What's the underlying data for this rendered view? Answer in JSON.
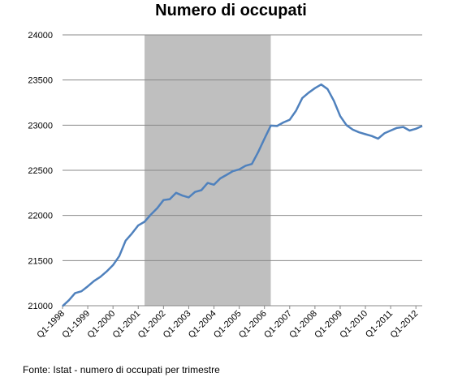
{
  "chart_data": {
    "type": "line",
    "title": "Numero di occupati",
    "source": "Fonte: Istat - numero di occupati per trimestre",
    "xlabel": "",
    "ylabel": "",
    "ylim": [
      21000,
      24000
    ],
    "yticks": [
      "21000",
      "21500",
      "22000",
      "22500",
      "23000",
      "23500",
      "24000"
    ],
    "xtick_labels": [
      "Q1-1998",
      "Q1-1999",
      "Q1-2000",
      "Q1-2001",
      "Q1-2002",
      "Q1-2003",
      "Q1-2004",
      "Q1-2005",
      "Q1-2006",
      "Q1-2007",
      "Q1-2008",
      "Q1-2009",
      "Q1-2010",
      "Q1-2011",
      "Q1-2012"
    ],
    "grid": true,
    "legend": "none",
    "line_color": "#4F81BD",
    "shade_color": "#BFBFBF",
    "shaded_period": [
      "Q2-2001",
      "Q2-2006"
    ],
    "series": [
      {
        "x": [
          "Q1-1998",
          "Q2-1998",
          "Q3-1998",
          "Q4-1998",
          "Q1-1999",
          "Q2-1999",
          "Q3-1999",
          "Q4-1999",
          "Q1-2000",
          "Q2-2000",
          "Q3-2000",
          "Q4-2000",
          "Q1-2001",
          "Q2-2001",
          "Q3-2001",
          "Q4-2001",
          "Q1-2002",
          "Q2-2002",
          "Q3-2002",
          "Q4-2002",
          "Q1-2003",
          "Q2-2003",
          "Q3-2003",
          "Q4-2003",
          "Q1-2004",
          "Q2-2004",
          "Q3-2004",
          "Q4-2004",
          "Q1-2005",
          "Q2-2005",
          "Q3-2005",
          "Q4-2005",
          "Q1-2006",
          "Q2-2006",
          "Q3-2006",
          "Q4-2006",
          "Q1-2007",
          "Q2-2007",
          "Q3-2007",
          "Q4-2007",
          "Q1-2008",
          "Q2-2008",
          "Q3-2008",
          "Q4-2008",
          "Q1-2009",
          "Q2-2009",
          "Q3-2009",
          "Q4-2009",
          "Q1-2010",
          "Q2-2010",
          "Q3-2010",
          "Q4-2010",
          "Q1-2011",
          "Q2-2011",
          "Q3-2011",
          "Q4-2011",
          "Q1-2012",
          "Q2-2012"
        ],
        "values": [
          20995,
          21060,
          21140,
          21160,
          21215,
          21275,
          21320,
          21380,
          21450,
          21550,
          21720,
          21800,
          21890,
          21930,
          22010,
          22080,
          22170,
          22180,
          22250,
          22220,
          22200,
          22260,
          22280,
          22360,
          22340,
          22410,
          22450,
          22490,
          22510,
          22550,
          22570,
          22700,
          22850,
          22995,
          22990,
          23030,
          23060,
          23160,
          23300,
          23360,
          23410,
          23450,
          23400,
          23270,
          23100,
          23000,
          22950,
          22920,
          22900,
          22880,
          22850,
          22910,
          22940,
          22970,
          22980,
          22940,
          22960,
          22990
        ]
      }
    ]
  }
}
